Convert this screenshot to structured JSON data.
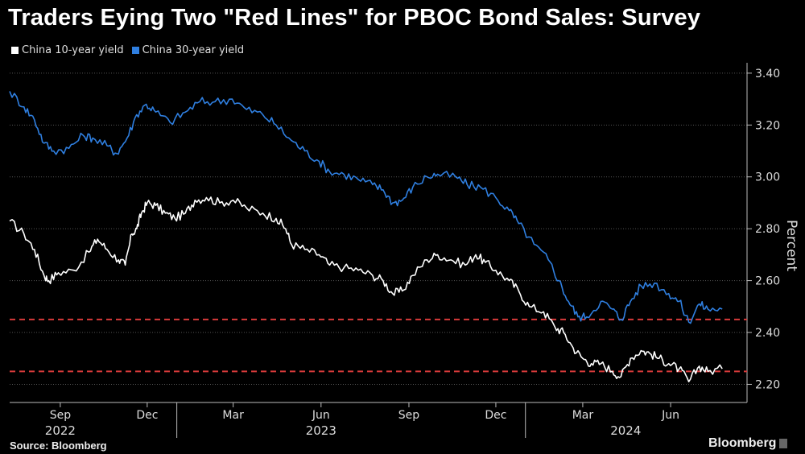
{
  "header": {
    "title": "Traders Eying Two \"Red Lines\" for PBOC Bond Sales: Survey"
  },
  "legend": [
    {
      "label": "China 10-year yield",
      "color": "#ffffff"
    },
    {
      "label": "China 30-year yield",
      "color": "#2f7fe0"
    }
  ],
  "footer": {
    "source": "Source: Bloomberg",
    "brand": "Bloomberg"
  },
  "colors": {
    "background": "#000000",
    "grid": "#555555",
    "ten_year": "#ffffff",
    "thirty_year": "#2f7fe0",
    "red_lines": "#d73a3a"
  },
  "chart_data": {
    "type": "line",
    "title": "Traders Eying Two \"Red Lines\" for PBOC Bond Sales: Survey",
    "xlabel": "",
    "ylabel": "Percent",
    "xlim": [
      "2022-07-10",
      "2024-08-20"
    ],
    "ylim": [
      2.13,
      3.44
    ],
    "y_ticks": [
      2.2,
      2.4,
      2.6,
      2.8,
      3.0,
      3.2,
      3.4
    ],
    "y_tick_labels": [
      "2.20",
      "2.40",
      "2.60",
      "2.80",
      "3.00",
      "3.20",
      "3.40"
    ],
    "x_ticks": [
      {
        "date": "2022-09-01",
        "label": "Sep"
      },
      {
        "date": "2022-12-01",
        "label": "Dec"
      },
      {
        "date": "2023-03-01",
        "label": "Mar"
      },
      {
        "date": "2023-06-01",
        "label": "Jun"
      },
      {
        "date": "2023-09-01",
        "label": "Sep"
      },
      {
        "date": "2023-12-01",
        "label": "Dec"
      },
      {
        "date": "2024-03-01",
        "label": "Mar"
      },
      {
        "date": "2024-06-01",
        "label": "Jun"
      }
    ],
    "year_labels": [
      {
        "date": "2022-09-01",
        "label": "2022"
      },
      {
        "date": "2023-06-01",
        "label": "2023"
      },
      {
        "date": "2024-04-15",
        "label": "2024"
      }
    ],
    "year_dividers": [
      "2023-01-01",
      "2024-01-01"
    ],
    "grid": true,
    "legend_position": "top-left",
    "reference_lines": [
      {
        "y": 2.45,
        "style": "dashed",
        "color": "#d73a3a"
      },
      {
        "y": 2.25,
        "style": "dashed",
        "color": "#d73a3a"
      }
    ],
    "series": [
      {
        "name": "China 10-year yield",
        "color": "#ffffff",
        "points": [
          [
            "2022-07-10",
            2.83
          ],
          [
            "2022-07-25",
            2.78
          ],
          [
            "2022-08-05",
            2.72
          ],
          [
            "2022-08-15",
            2.62
          ],
          [
            "2022-08-20",
            2.6
          ],
          [
            "2022-08-30",
            2.63
          ],
          [
            "2022-09-15",
            2.64
          ],
          [
            "2022-10-01",
            2.71
          ],
          [
            "2022-10-10",
            2.76
          ],
          [
            "2022-10-20",
            2.72
          ],
          [
            "2022-11-01",
            2.68
          ],
          [
            "2022-11-08",
            2.66
          ],
          [
            "2022-11-15",
            2.78
          ],
          [
            "2022-11-20",
            2.8
          ],
          [
            "2022-11-25",
            2.86
          ],
          [
            "2022-12-01",
            2.9
          ],
          [
            "2022-12-10",
            2.89
          ],
          [
            "2022-12-20",
            2.86
          ],
          [
            "2022-12-30",
            2.84
          ],
          [
            "2023-01-10",
            2.86
          ],
          [
            "2023-01-20",
            2.91
          ],
          [
            "2023-02-01",
            2.92
          ],
          [
            "2023-02-15",
            2.9
          ],
          [
            "2023-03-01",
            2.91
          ],
          [
            "2023-03-15",
            2.88
          ],
          [
            "2023-04-01",
            2.86
          ],
          [
            "2023-04-15",
            2.84
          ],
          [
            "2023-04-25",
            2.8
          ],
          [
            "2023-05-01",
            2.74
          ],
          [
            "2023-05-15",
            2.72
          ],
          [
            "2023-05-30",
            2.7
          ],
          [
            "2023-06-10",
            2.66
          ],
          [
            "2023-06-25",
            2.65
          ],
          [
            "2023-07-10",
            2.64
          ],
          [
            "2023-07-25",
            2.62
          ],
          [
            "2023-08-05",
            2.6
          ],
          [
            "2023-08-15",
            2.55
          ],
          [
            "2023-08-25",
            2.56
          ],
          [
            "2023-09-05",
            2.62
          ],
          [
            "2023-09-20",
            2.68
          ],
          [
            "2023-10-01",
            2.7
          ],
          [
            "2023-10-15",
            2.68
          ],
          [
            "2023-10-30",
            2.66
          ],
          [
            "2023-11-10",
            2.7
          ],
          [
            "2023-11-20",
            2.67
          ],
          [
            "2023-12-01",
            2.64
          ],
          [
            "2023-12-15",
            2.6
          ],
          [
            "2023-12-25",
            2.56
          ],
          [
            "2024-01-05",
            2.5
          ],
          [
            "2024-01-20",
            2.48
          ],
          [
            "2024-02-01",
            2.42
          ],
          [
            "2024-02-10",
            2.4
          ],
          [
            "2024-02-20",
            2.34
          ],
          [
            "2024-03-01",
            2.3
          ],
          [
            "2024-03-10",
            2.28
          ],
          [
            "2024-03-20",
            2.28
          ],
          [
            "2024-04-01",
            2.25
          ],
          [
            "2024-04-10",
            2.23
          ],
          [
            "2024-04-20",
            2.3
          ],
          [
            "2024-05-01",
            2.33
          ],
          [
            "2024-05-10",
            2.32
          ],
          [
            "2024-05-20",
            2.3
          ],
          [
            "2024-05-30",
            2.28
          ],
          [
            "2024-06-10",
            2.26
          ],
          [
            "2024-06-20",
            2.21
          ],
          [
            "2024-07-01",
            2.27
          ],
          [
            "2024-07-10",
            2.25
          ],
          [
            "2024-07-25",
            2.26
          ]
        ]
      },
      {
        "name": "China 30-year yield",
        "color": "#2f7fe0",
        "points": [
          [
            "2022-07-10",
            3.33
          ],
          [
            "2022-07-25",
            3.27
          ],
          [
            "2022-08-05",
            3.22
          ],
          [
            "2022-08-15",
            3.13
          ],
          [
            "2022-08-25",
            3.1
          ],
          [
            "2022-09-10",
            3.11
          ],
          [
            "2022-09-25",
            3.16
          ],
          [
            "2022-10-05",
            3.15
          ],
          [
            "2022-10-20",
            3.12
          ],
          [
            "2022-10-30",
            3.09
          ],
          [
            "2022-11-10",
            3.15
          ],
          [
            "2022-11-20",
            3.24
          ],
          [
            "2022-11-30",
            3.28
          ],
          [
            "2022-12-10",
            3.25
          ],
          [
            "2022-12-25",
            3.21
          ],
          [
            "2023-01-10",
            3.25
          ],
          [
            "2023-01-25",
            3.29
          ],
          [
            "2023-02-10",
            3.29
          ],
          [
            "2023-02-28",
            3.3
          ],
          [
            "2023-03-15",
            3.26
          ],
          [
            "2023-04-01",
            3.24
          ],
          [
            "2023-04-15",
            3.2
          ],
          [
            "2023-05-01",
            3.14
          ],
          [
            "2023-05-15",
            3.1
          ],
          [
            "2023-05-30",
            3.06
          ],
          [
            "2023-06-10",
            3.02
          ],
          [
            "2023-06-25",
            3.01
          ],
          [
            "2023-07-10",
            2.99
          ],
          [
            "2023-07-25",
            2.97
          ],
          [
            "2023-08-05",
            2.95
          ],
          [
            "2023-08-15",
            2.9
          ],
          [
            "2023-08-25",
            2.91
          ],
          [
            "2023-09-05",
            2.96
          ],
          [
            "2023-09-20",
            3.0
          ],
          [
            "2023-10-01",
            3.01
          ],
          [
            "2023-10-20",
            3.0
          ],
          [
            "2023-11-01",
            2.97
          ],
          [
            "2023-11-15",
            2.96
          ],
          [
            "2023-12-01",
            2.92
          ],
          [
            "2023-12-15",
            2.87
          ],
          [
            "2023-12-25",
            2.82
          ],
          [
            "2024-01-10",
            2.74
          ],
          [
            "2024-01-25",
            2.68
          ],
          [
            "2024-02-05",
            2.6
          ],
          [
            "2024-02-15",
            2.52
          ],
          [
            "2024-02-25",
            2.46
          ],
          [
            "2024-03-05",
            2.46
          ],
          [
            "2024-03-20",
            2.52
          ],
          [
            "2024-04-01",
            2.49
          ],
          [
            "2024-04-10",
            2.45
          ],
          [
            "2024-04-20",
            2.52
          ],
          [
            "2024-05-01",
            2.58
          ],
          [
            "2024-05-15",
            2.59
          ],
          [
            "2024-05-30",
            2.55
          ],
          [
            "2024-06-10",
            2.52
          ],
          [
            "2024-06-20",
            2.44
          ],
          [
            "2024-07-01",
            2.51
          ],
          [
            "2024-07-10",
            2.49
          ],
          [
            "2024-07-25",
            2.49
          ]
        ]
      }
    ]
  }
}
